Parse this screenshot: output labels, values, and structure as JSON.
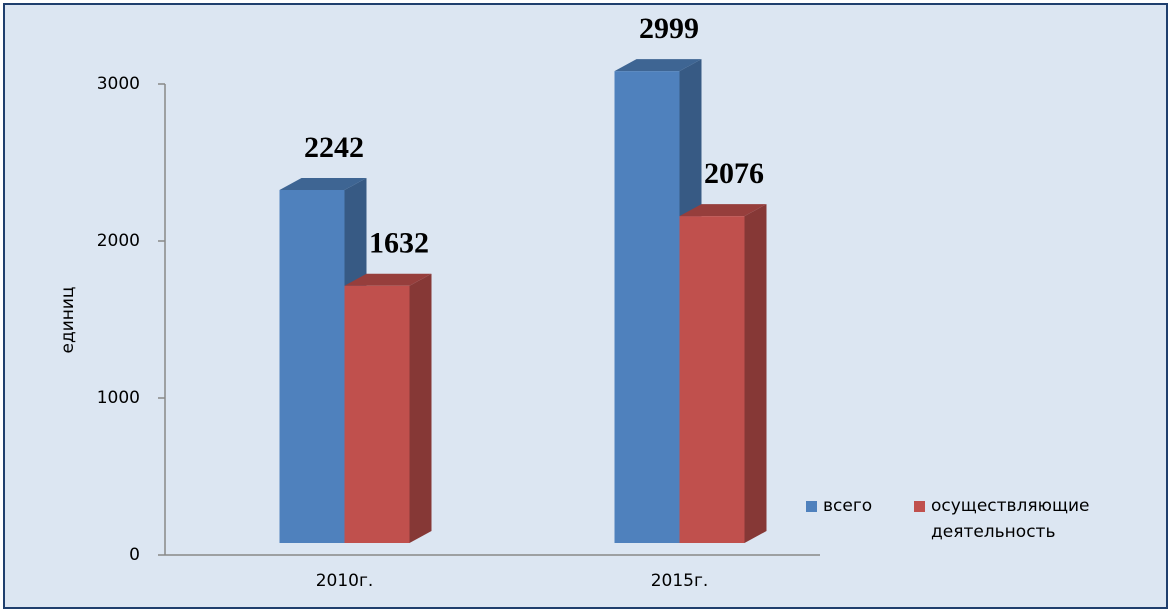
{
  "chart_data": {
    "type": "bar3d",
    "y_label": "единиц",
    "categories": [
      "2010г.",
      "2015г."
    ],
    "series": [
      {
        "name": "всего",
        "color": "#4f81bd",
        "values": [
          2242,
          2999
        ]
      },
      {
        "name": "осуществляющие деятельность",
        "color": "#c0504d",
        "values": [
          1632,
          2076
        ]
      }
    ],
    "ylim": [
      0,
      3000
    ],
    "yticks": [
      0,
      1000,
      2000,
      3000
    ],
    "legend": "right"
  }
}
